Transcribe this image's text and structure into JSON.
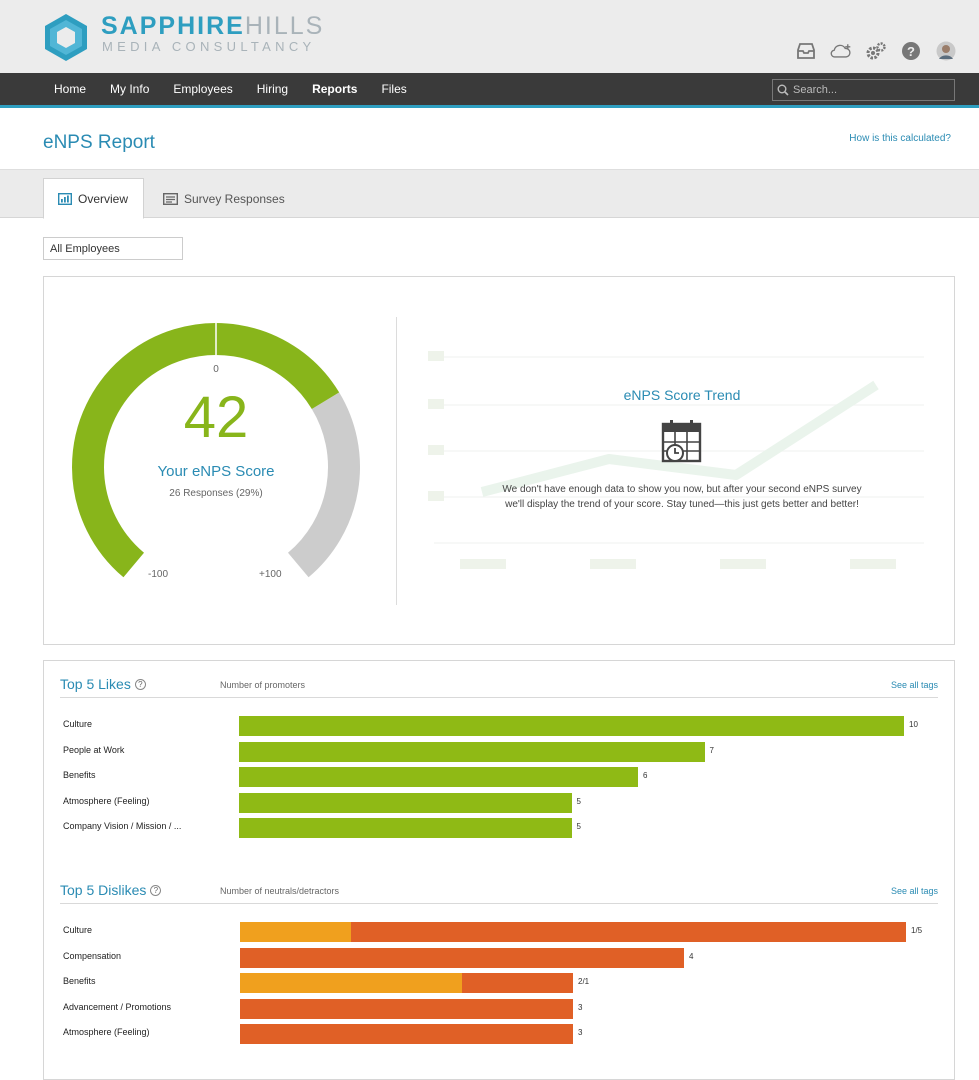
{
  "brand": {
    "name_bold": "SAPPHIRE",
    "name_light": "HILLS",
    "subtitle": "MEDIA CONSULTANCY"
  },
  "nav": {
    "items": [
      "Home",
      "My Info",
      "Employees",
      "Hiring",
      "Reports",
      "Files"
    ],
    "active": "Reports",
    "search_placeholder": "Search..."
  },
  "header_icons": [
    "inbox-icon",
    "cloud-add-icon",
    "settings-gears-icon",
    "help-icon",
    "user-avatar"
  ],
  "page": {
    "title": "eNPS Report",
    "how_link": "How is this calculated?"
  },
  "tabs": [
    {
      "label": "Overview",
      "active": true
    },
    {
      "label": "Survey Responses",
      "active": false
    }
  ],
  "filter": {
    "value": "All Employees"
  },
  "score": {
    "value": "42",
    "numeric": 42,
    "label": "Your eNPS Score",
    "responses": "26 Responses (29%)",
    "zero_label": "0",
    "min_label": "-100",
    "max_label": "+100",
    "colors": {
      "score": "#88b51b",
      "remainder": "#cccccc"
    }
  },
  "trend": {
    "title": "eNPS Score Trend",
    "message": "We don't have enough data to show you now, but after your second eNPS survey we'll display the trend of your score. Stay tuned—this just gets better and better!"
  },
  "likes": {
    "title": "Top 5 Likes",
    "subtitle": "Number of promoters",
    "link": "See all tags",
    "max": 10,
    "color": "#8fba15",
    "items": [
      {
        "label": "Culture",
        "value": 10,
        "value_text": "10"
      },
      {
        "label": "People at Work",
        "value": 7,
        "value_text": "7"
      },
      {
        "label": "Benefits",
        "value": 6,
        "value_text": "6"
      },
      {
        "label": "Atmosphere (Feeling)",
        "value": 5,
        "value_text": "5"
      },
      {
        "label": "Company Vision / Mission / ...",
        "value": 5,
        "value_text": "5"
      }
    ]
  },
  "dislikes": {
    "title": "Top 5 Dislikes",
    "subtitle": "Number of neutrals/detractors",
    "link": "See all tags",
    "max": 6,
    "colors": {
      "neutral": "#f0a01e",
      "detractor": "#e06026"
    },
    "items": [
      {
        "label": "Culture",
        "neutral": 1,
        "detractor": 5,
        "value_text": "1/5"
      },
      {
        "label": "Compensation",
        "neutral": 0,
        "detractor": 4,
        "value_text": "4"
      },
      {
        "label": "Benefits",
        "neutral": 2,
        "detractor": 1,
        "value_text": "2/1"
      },
      {
        "label": "Advancement / Promotions",
        "neutral": 0,
        "detractor": 3,
        "value_text": "3"
      },
      {
        "label": "Atmosphere (Feeling)",
        "neutral": 0,
        "detractor": 3,
        "value_text": "3"
      }
    ]
  }
}
